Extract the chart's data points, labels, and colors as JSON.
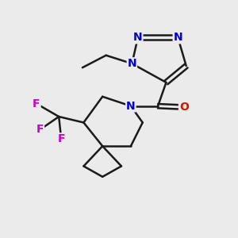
{
  "bg_color": "#ebebeb",
  "bond_color": "#1a1a1a",
  "N_color": "#0000cc",
  "O_color": "#dd1100",
  "F_color": "#cc00cc",
  "line_width": 1.8,
  "font_size_atom": 10,
  "fig_size": [
    3.0,
    3.0
  ],
  "dpi": 100,
  "xlim": [
    0,
    10
  ],
  "ylim": [
    0,
    10
  ]
}
